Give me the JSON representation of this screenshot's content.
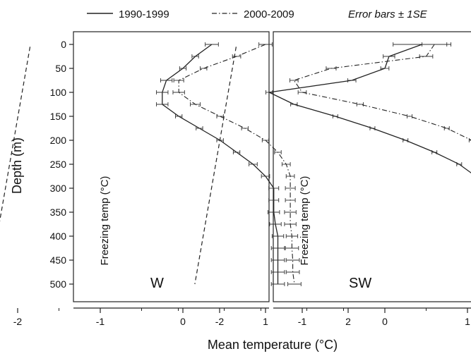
{
  "chart_data": {
    "type": "line",
    "xlabel": "Mean temperature (°C)",
    "ylabel": "Depth (m)",
    "xlim": [
      -2.6,
      2
    ],
    "ylim": [
      530,
      -20
    ],
    "x_ticks": [
      -2,
      -1,
      0,
      1,
      2
    ],
    "y_ticks": [
      0,
      50,
      100,
      150,
      200,
      250,
      300,
      350,
      400,
      450,
      500
    ],
    "legend": {
      "placement": "top",
      "entries": [
        {
          "label": "1990-1999",
          "style": "solid"
        },
        {
          "label": "2000-2009",
          "style": "dashdot"
        }
      ],
      "note": "Error bars ± 1SE"
    },
    "panels": [
      {
        "label": "W",
        "freezing_label": "Freezing temp (°C)",
        "freezing_line": [
          [
            -1.85,
            5
          ],
          [
            -2.35,
            500
          ]
        ],
        "series": [
          {
            "name": "1990-1999",
            "style": "solid",
            "depth": [
              0,
              25,
              50,
              75,
              100,
              125,
              150,
              175,
              200,
              225,
              250,
              275,
              300,
              325,
              350,
              375,
              400,
              425,
              450,
              475,
              500
            ],
            "temp": [
              0.35,
              0.15,
              0.0,
              -0.2,
              -0.25,
              -0.25,
              -0.05,
              0.2,
              0.45,
              0.65,
              0.85,
              1.0,
              1.1,
              1.1,
              1.1,
              1.12,
              1.15,
              1.15,
              1.15,
              1.15,
              1.15
            ],
            "se": [
              0.08,
              0.04,
              0.04,
              0.07,
              0.07,
              0.07,
              0.04,
              0.04,
              0.04,
              0.04,
              0.05,
              0.05,
              0.06,
              0.06,
              0.07,
              0.07,
              0.07,
              0.08,
              0.08,
              0.08,
              0.08
            ]
          },
          {
            "name": "2000-2009",
            "style": "dashdot",
            "depth": [
              0,
              25,
              50,
              75,
              100,
              125,
              150,
              175,
              200,
              225,
              250,
              275,
              300,
              325,
              350,
              375,
              400,
              425,
              450,
              475,
              500
            ],
            "temp": [
              1.0,
              0.65,
              0.25,
              -0.05,
              -0.05,
              0.15,
              0.45,
              0.75,
              1.0,
              1.15,
              1.25,
              1.3,
              1.3,
              1.3,
              1.3,
              1.3,
              1.32,
              1.32,
              1.33,
              1.33,
              1.35
            ],
            "se": [
              0.08,
              0.05,
              0.04,
              0.06,
              0.07,
              0.06,
              0.04,
              0.04,
              0.04,
              0.04,
              0.05,
              0.05,
              0.06,
              0.06,
              0.07,
              0.07,
              0.07,
              0.08,
              0.08,
              0.08,
              0.08
            ]
          }
        ]
      },
      {
        "label": "SW",
        "freezing_label": "Freezing temp (°C)",
        "freezing_line": [
          [
            -1.8,
            5
          ],
          [
            -2.3,
            500
          ]
        ],
        "series": [
          {
            "name": "1990-1999",
            "style": "solid",
            "depth": [
              0,
              25,
              50,
              75,
              100,
              125,
              150,
              175,
              200,
              225,
              250,
              275,
              300,
              325,
              350,
              375,
              400,
              425,
              450,
              475,
              500
            ],
            "temp": [
              0.45,
              0.05,
              0.0,
              -0.4,
              -1.4,
              -1.1,
              -0.6,
              -0.15,
              0.25,
              0.6,
              0.9,
              1.1,
              1.25,
              1.3,
              1.3,
              1.3,
              1.32,
              1.32,
              1.33,
              1.33,
              1.33
            ],
            "se": [
              0.35,
              0.07,
              0.05,
              0.05,
              0.04,
              0.04,
              0.03,
              0.03,
              0.03,
              0.03,
              0.03,
              0.03,
              0.03,
              0.03,
              0.03,
              0.03,
              0.03,
              0.03,
              0.03,
              0.03,
              0.03
            ]
          },
          {
            "name": "2000-2009",
            "style": "dashdot",
            "depth": [
              0,
              25,
              50,
              75,
              100,
              125,
              150,
              175,
              200,
              225,
              250,
              275,
              300,
              325,
              350,
              375,
              400,
              425,
              450,
              475,
              500
            ],
            "temp": [
              0.6,
              0.5,
              -0.65,
              -1.1,
              -1.0,
              -0.3,
              0.3,
              0.75,
              1.05,
              1.25,
              1.35,
              1.4,
              1.4,
              1.4,
              1.4,
              1.38,
              1.38,
              1.38,
              1.37,
              1.37,
              1.37
            ],
            "se": [
              0.15,
              0.08,
              0.06,
              0.05,
              0.05,
              0.04,
              0.03,
              0.03,
              0.03,
              0.03,
              0.03,
              0.03,
              0.03,
              0.03,
              0.03,
              0.03,
              0.03,
              0.03,
              0.03,
              0.03,
              0.03
            ]
          }
        ]
      }
    ]
  }
}
